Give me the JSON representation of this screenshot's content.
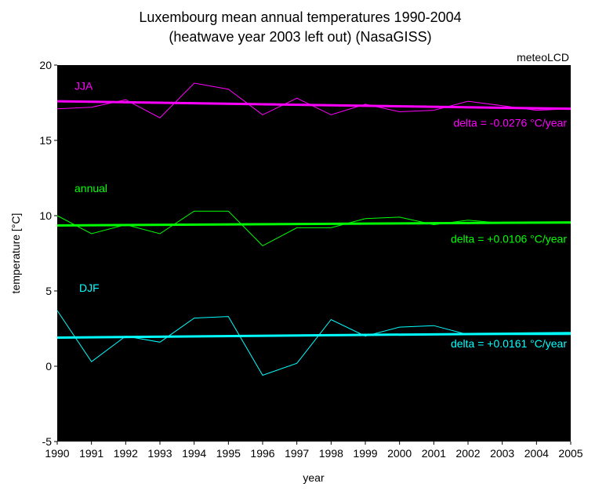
{
  "chart_data": {
    "type": "line",
    "title_line1": "Luxembourg mean annual temperatures 1990-2004",
    "title_line2": "(heatwave year 2003 left out) (NasaGISS)",
    "credit": "meteoLCD",
    "xlabel": "year",
    "ylabel": "temperature [°C]",
    "xlim": [
      1990,
      2005
    ],
    "ylim": [
      -5,
      20
    ],
    "x_ticks": [
      1990,
      1991,
      1992,
      1993,
      1994,
      1995,
      1996,
      1997,
      1998,
      1999,
      2000,
      2001,
      2002,
      2003,
      2004,
      2005
    ],
    "y_ticks": [
      -5,
      0,
      5,
      10,
      15,
      20
    ],
    "grid": false,
    "background_color": "#000000",
    "series": [
      {
        "name": "JJA",
        "color": "#ff00ff",
        "x": [
          1990,
          1991,
          1992,
          1993,
          1994,
          1995,
          1996,
          1997,
          1998,
          1999,
          2000,
          2001,
          2002,
          2003,
          2004,
          2005
        ],
        "values": [
          17.1,
          17.2,
          17.7,
          16.5,
          18.8,
          18.4,
          16.7,
          17.8,
          16.7,
          17.4,
          16.9,
          17.0,
          17.6,
          17.3,
          17.0,
          17.1
        ],
        "trend": {
          "start": 17.6,
          "end": 17.1
        },
        "delta_label": "delta = -0.0276 °C/year"
      },
      {
        "name": "annual",
        "color": "#00ff00",
        "x": [
          1990,
          1991,
          1992,
          1993,
          1994,
          1995,
          1996,
          1997,
          1998,
          1999,
          2000,
          2001,
          2002,
          2003,
          2004,
          2005
        ],
        "values": [
          10.0,
          8.8,
          9.4,
          8.8,
          10.3,
          10.3,
          8.0,
          9.2,
          9.2,
          9.8,
          9.9,
          9.4,
          9.7,
          9.5,
          9.5,
          9.5
        ],
        "trend": {
          "start": 9.35,
          "end": 9.55
        },
        "delta_label": "delta = +0.0106 °C/year"
      },
      {
        "name": "DJF",
        "color": "#00ffff",
        "x": [
          1990,
          1991,
          1992,
          1993,
          1994,
          1995,
          1996,
          1997,
          1998,
          1999,
          2000,
          2001,
          2002,
          2003,
          2004,
          2005
        ],
        "values": [
          3.7,
          0.3,
          2.0,
          1.6,
          3.2,
          3.3,
          -0.6,
          0.2,
          3.1,
          2.0,
          2.6,
          2.7,
          2.1,
          2.1,
          2.1,
          2.1
        ],
        "trend": {
          "start": 1.9,
          "end": 2.2
        },
        "delta_label": "delta = +0.0161 °C/year"
      }
    ]
  }
}
